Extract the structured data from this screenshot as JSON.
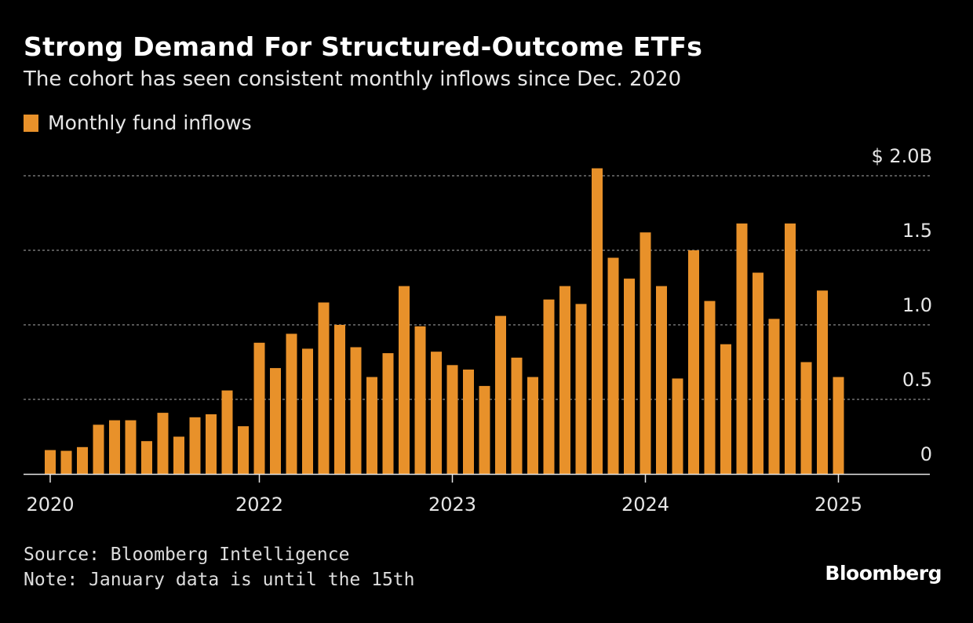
{
  "header": {
    "title": "Strong Demand For Structured-Outcome ETFs",
    "subtitle": "The cohort has seen consistent monthly inflows since Dec. 2020"
  },
  "footer": {
    "source": "Source: Bloomberg Intelligence",
    "note": "Note: January data is until the 15th",
    "logo": "Bloomberg"
  },
  "colors": {
    "bar": "#e8912a",
    "background": "#000000",
    "grid": "#8a8a8a",
    "text": "#e6e6e6"
  },
  "chart_data": {
    "type": "bar",
    "title": "Strong Demand For Structured-Outcome ETFs",
    "subtitle": "The cohort has seen consistent monthly inflows since Dec. 2020",
    "legend": {
      "placement": "top-left",
      "entries": [
        "Monthly fund inflows"
      ]
    },
    "series": [
      {
        "name": "Monthly fund inflows",
        "values": [
          0.16,
          0.155,
          0.18,
          0.33,
          0.36,
          0.36,
          0.22,
          0.41,
          0.25,
          0.38,
          0.4,
          0.56,
          0.32,
          0.88,
          0.71,
          0.94,
          0.84,
          1.15,
          1.0,
          0.85,
          0.65,
          0.81,
          1.26,
          0.99,
          0.82,
          0.73,
          0.7,
          0.59,
          1.06,
          0.78,
          0.65,
          1.17,
          1.26,
          1.14,
          2.05,
          1.45,
          1.31,
          1.62,
          1.26,
          0.64,
          1.5,
          1.16,
          0.87,
          1.68,
          1.35,
          1.04,
          1.68,
          0.75,
          1.23,
          0.65
        ]
      }
    ],
    "x_start": "2020-12",
    "x_end": "2025-01",
    "x_ticks": [
      {
        "label": "2020",
        "date": "2020-12"
      },
      {
        "label": "2022",
        "date": "2022-01"
      },
      {
        "label": "2023",
        "date": "2023-01"
      },
      {
        "label": "2024",
        "date": "2024-01"
      },
      {
        "label": "2025",
        "date": "2025-01"
      }
    ],
    "y_ticks": [
      {
        "value": 0,
        "label": "0"
      },
      {
        "value": 0.5,
        "label": "0.5"
      },
      {
        "value": 1.0,
        "label": "1.0"
      },
      {
        "value": 1.5,
        "label": "1.5"
      },
      {
        "value": 2.0,
        "label": "$ 2.0B"
      }
    ],
    "ylim": [
      0,
      2.0
    ],
    "grid": true,
    "y_axis_side": "right"
  }
}
